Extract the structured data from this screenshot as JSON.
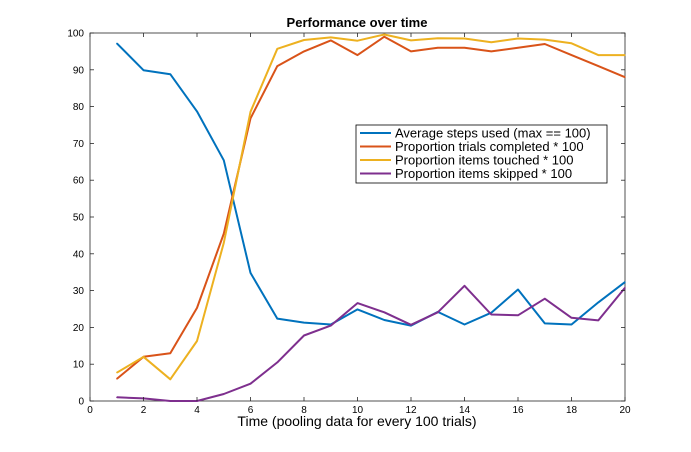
{
  "chart_data": {
    "type": "line",
    "title": "Performance over time",
    "xlabel": "Time (pooling data for every 100 trials)",
    "ylabel": "",
    "xlim": [
      0,
      20
    ],
    "ylim": [
      0,
      100
    ],
    "xticks": [
      "0",
      "2",
      "4",
      "6",
      "8",
      "10",
      "12",
      "14",
      "16",
      "18",
      "20"
    ],
    "yticks": [
      "0",
      "10",
      "20",
      "30",
      "40",
      "50",
      "60",
      "70",
      "80",
      "90",
      "100"
    ],
    "grid": false,
    "legend_position": "right-center",
    "x": [
      1,
      2,
      3,
      4,
      5,
      6,
      7,
      8,
      9,
      10,
      11,
      12,
      13,
      14,
      15,
      16,
      17,
      18,
      19,
      20
    ],
    "series": [
      {
        "name": "Average steps used (max == 100)",
        "color": "#0072bd",
        "values": [
          97.2,
          89.9,
          88.8,
          78.7,
          65.4,
          34.8,
          22.4,
          21.3,
          20.8,
          24.9,
          22.0,
          20.5,
          24.2,
          20.8,
          24.0,
          30.3,
          21.1,
          20.8,
          26.8,
          32.3
        ]
      },
      {
        "name": "Proportion trials completed * 100",
        "color": "#d95319",
        "values": [
          6.0,
          12.0,
          13.0,
          25.3,
          45.5,
          76.8,
          91.0,
          95.0,
          98.0,
          94.0,
          99.0,
          95.0,
          96.0,
          96.0,
          95.0,
          96.0,
          97.0,
          94.0,
          91.0,
          88.0
        ]
      },
      {
        "name": "Proportion items touched * 100",
        "color": "#edb120",
        "values": [
          7.7,
          12.0,
          5.9,
          16.3,
          43.0,
          78.6,
          95.7,
          98.1,
          98.8,
          97.9,
          99.6,
          98.0,
          98.6,
          98.5,
          97.5,
          98.5,
          98.2,
          97.2,
          94.0,
          94.0
        ]
      },
      {
        "name": "Proportion items skipped * 100",
        "color": "#7e2f8e",
        "values": [
          1.0,
          0.7,
          0.0,
          0.0,
          1.9,
          4.7,
          10.5,
          17.8,
          20.5,
          26.6,
          24.1,
          20.7,
          24.1,
          31.3,
          23.5,
          23.3,
          27.8,
          22.6,
          21.9,
          30.8
        ]
      }
    ]
  }
}
